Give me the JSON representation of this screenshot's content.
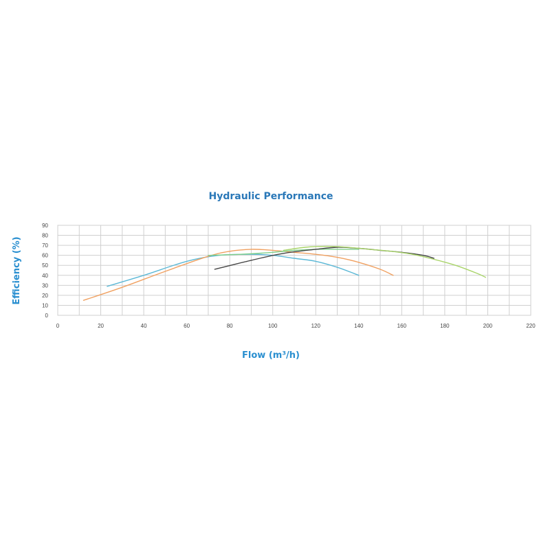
{
  "chart_data": {
    "type": "line",
    "title": "Hydraulic Performance",
    "xlabel": "Flow (m³/h)",
    "ylabel": "Efficiency (%)",
    "xlim": [
      0,
      220
    ],
    "ylim": [
      0,
      90
    ],
    "xticks": [
      0,
      20,
      40,
      60,
      80,
      100,
      120,
      140,
      160,
      180,
      200,
      220
    ],
    "yticks": [
      0,
      10,
      20,
      30,
      40,
      50,
      60,
      70,
      80,
      90
    ],
    "grid": true,
    "series": [
      {
        "color": "#5bb8d6",
        "x": [
          23,
          40,
          60,
          75,
          90,
          100,
          110,
          120,
          130,
          140
        ],
        "y": [
          29,
          40,
          54,
          60,
          61,
          60,
          57,
          54,
          48,
          40
        ]
      },
      {
        "color": "#f0a060",
        "x": [
          12,
          30,
          50,
          70,
          80,
          90,
          100,
          110,
          120,
          130,
          140,
          150,
          156
        ],
        "y": [
          15,
          28,
          44,
          59,
          64,
          66,
          65,
          63,
          61,
          58,
          53,
          46,
          40
        ]
      },
      {
        "color": "#7fcf8a",
        "x": [
          70,
          85,
          100,
          110,
          120,
          130,
          140
        ],
        "y": [
          60,
          61,
          63,
          65,
          66,
          66,
          66
        ]
      },
      {
        "color": "#444444",
        "x": [
          73,
          90,
          105,
          120,
          130,
          140,
          150,
          160,
          170,
          175
        ],
        "y": [
          46,
          55,
          62,
          66,
          68,
          67,
          65,
          63,
          60,
          57
        ]
      },
      {
        "color": "#a8d468",
        "x": [
          105,
          115,
          125,
          135,
          145,
          155,
          165,
          175,
          185,
          195,
          199
        ],
        "y": [
          65,
          68,
          69,
          68,
          66,
          64,
          61,
          56,
          50,
          42,
          38
        ]
      }
    ]
  }
}
